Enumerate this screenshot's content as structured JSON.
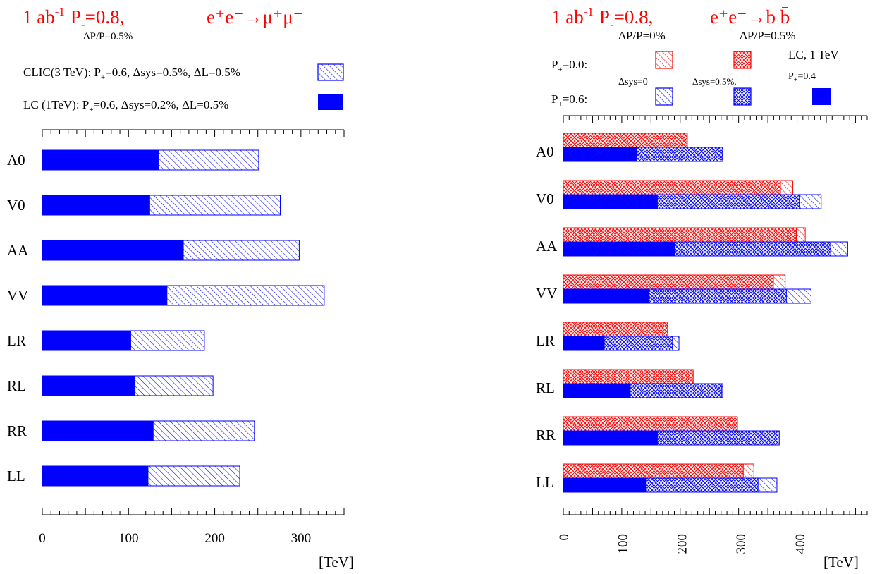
{
  "colors": {
    "blue": "#0000ff",
    "red": "#ff0000",
    "axis": "#000000"
  },
  "chart_data": [
    {
      "type": "bar",
      "orientation": "horizontal",
      "title": {
        "lumi": "1 ab",
        "lumi_exp": "-1",
        "pol": "P",
        "pol_sub": "-",
        "pol_val": "=0.8,",
        "process": "e⁺e⁻→μ⁺μ⁻",
        "note": "ΔP/P=0.5%"
      },
      "legend": [
        {
          "label_pre": "CLIC(3 TeV): P",
          "label_sub": "+",
          "label_post": "=0.6, Δsys=0.5%, ΔL=0.5%",
          "style": "hatched-blue"
        },
        {
          "label_pre": "LC (1TeV):  P",
          "label_sub": "+",
          "label_post": "=0.6, Δsys=0.2%, ΔL=0.5%",
          "style": "solid-blue"
        }
      ],
      "categories": [
        "A0",
        "V0",
        "AA",
        "VV",
        "LR",
        "RL",
        "RR",
        "LL"
      ],
      "series": [
        {
          "name": "LC (1TeV)",
          "style": "solid-blue",
          "values": [
            135,
            125,
            164,
            145,
            103,
            108,
            129,
            123
          ]
        },
        {
          "name": "CLIC(3 TeV)",
          "style": "hatched-blue",
          "values": [
            251,
            276,
            298,
            327,
            188,
            198,
            246,
            229
          ]
        }
      ],
      "xticks": [
        "0",
        "100",
        "200",
        "300"
      ],
      "xlim": [
        0,
        350
      ],
      "xunit": "[TeV]"
    },
    {
      "type": "bar",
      "orientation": "horizontal",
      "title": {
        "lumi": "1 ab",
        "lumi_exp": "-1",
        "pol": "P",
        "pol_sub": "-",
        "pol_val": "=0.8,",
        "process": "e⁺e⁻→b b̄",
        "note1": "ΔP/P=0%",
        "note2": "ΔP/P=0.5%"
      },
      "legend": {
        "row1_pre": "P",
        "row1_sub": "+",
        "row1_post": "=0.0:",
        "row2_pre": "P",
        "row2_sub": "+",
        "row2_post": "=0.6:",
        "sys0": "Δsys=0",
        "sys05": "Δsys=0.5%,",
        "lc": "LC, 1 TeV",
        "lc_p_pre": "P",
        "lc_p_sub": "+",
        "lc_p_post": "=0.4"
      },
      "categories": [
        "A0",
        "V0",
        "AA",
        "VV",
        "LR",
        "RL",
        "RR",
        "LL"
      ],
      "series": [
        {
          "name": "P+=0.0 Δsys=0",
          "style": "hatched-red",
          "values": [
            210,
            389,
            410,
            376,
            177,
            220,
            295,
            323
          ]
        },
        {
          "name": "P+=0.0 Δsys=0.5%",
          "style": "cross-red",
          "values": [
            210,
            368,
            395,
            356,
            177,
            220,
            295,
            305
          ]
        },
        {
          "name": "P+=0.6 Δsys=0",
          "style": "hatched-blue",
          "values": [
            270,
            437,
            482,
            420,
            196,
            270,
            366,
            362
          ]
        },
        {
          "name": "P+=0.6 Δsys=0.5%",
          "style": "cross-blue",
          "values": [
            270,
            400,
            453,
            378,
            185,
            268,
            364,
            330
          ]
        },
        {
          "name": "LC, 1 TeV P+=0.4",
          "style": "solid-blue",
          "values": [
            125,
            160,
            190,
            146,
            70,
            114,
            160,
            140
          ]
        }
      ],
      "xticks": [
        "0",
        "100",
        "200",
        "300",
        "400"
      ],
      "xlim": [
        0,
        515
      ],
      "xunit": "[TeV]"
    }
  ]
}
